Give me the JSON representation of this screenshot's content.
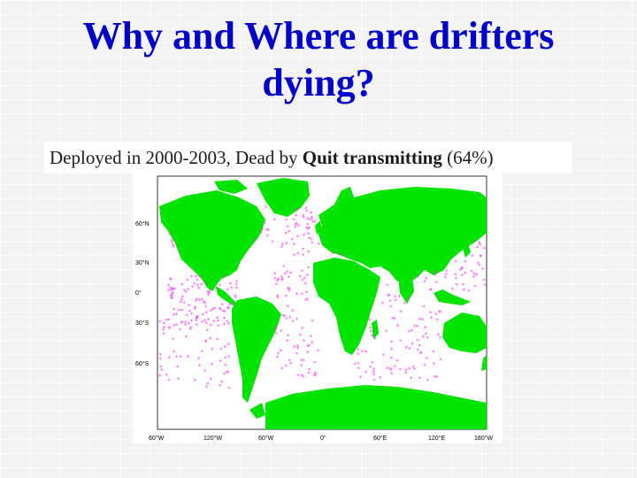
{
  "slide": {
    "title_line1": "Why and Where are drifters",
    "title_line2": "dying?",
    "caption_prefix": "Deployed in 2000-2003, Dead by ",
    "caption_bold": "Quit transmitting",
    "caption_suffix": " (64%)"
  },
  "map": {
    "lat_labels": [
      "60°N",
      "30°N",
      "0°",
      "30°S",
      "60°S"
    ],
    "lon_labels": [
      "60°W",
      "120°W",
      "60°W",
      "0°",
      "60°E",
      "120°E",
      "180°W"
    ],
    "colors": {
      "land": "#00e400",
      "drifter_marker": "#ff33ff",
      "ocean": "#ffffff",
      "title": "#0000cc"
    },
    "marker_icon": "asterisk-icon"
  }
}
